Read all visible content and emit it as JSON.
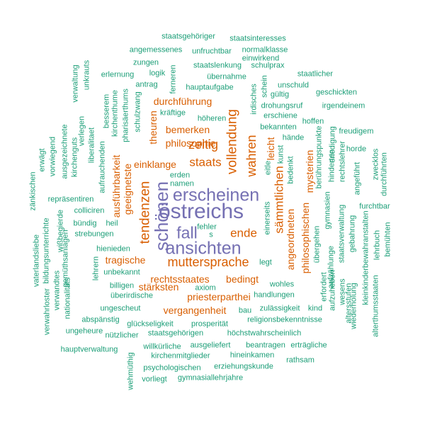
{
  "colors": {
    "purple": "#7570b3",
    "orange": "#d95f02",
    "teal": "#1b9e77"
  },
  "words": [
    {
      "text": "östreichs",
      "color": "purple"
    },
    {
      "text": "erscheinen",
      "color": "purple"
    },
    {
      "text": "ansichten",
      "color": "purple"
    },
    {
      "text": "schönen",
      "color": "purple"
    },
    {
      "text": "fall",
      "color": "purple"
    },
    {
      "text": "muttersprache",
      "color": "orange"
    },
    {
      "text": "tendenzen",
      "color": "orange"
    },
    {
      "text": "vollendung",
      "color": "orange"
    },
    {
      "text": "wahren",
      "color": "orange"
    },
    {
      "text": "zeitig",
      "color": "orange"
    },
    {
      "text": "staats",
      "color": "orange"
    },
    {
      "text": "ende",
      "color": "orange"
    },
    {
      "text": "sämmtlichen",
      "color": "orange"
    },
    {
      "text": "priesterparthei",
      "color": "orange"
    },
    {
      "text": "rechtsstaates",
      "color": "orange"
    },
    {
      "text": "bedingt",
      "color": "orange"
    },
    {
      "text": "vergangenheit",
      "color": "orange"
    },
    {
      "text": "stärksten",
      "color": "orange"
    },
    {
      "text": "tragische",
      "color": "orange"
    },
    {
      "text": "philosophie",
      "color": "orange"
    },
    {
      "text": "bemerken",
      "color": "orange"
    },
    {
      "text": "durchführung",
      "color": "orange"
    },
    {
      "text": "einklange",
      "color": "orange"
    },
    {
      "text": "theuren",
      "color": "orange"
    },
    {
      "text": "ausführbarkeit",
      "color": "orange"
    },
    {
      "text": "geeignetste",
      "color": "orange"
    },
    {
      "text": "leicht",
      "color": "orange"
    },
    {
      "text": "angeordneten",
      "color": "orange"
    },
    {
      "text": "philosophischen",
      "color": "orange"
    },
    {
      "text": "mysterien",
      "color": "orange"
    },
    {
      "text": "staatsgehöriger",
      "color": "teal"
    },
    {
      "text": "staatsinteresses",
      "color": "teal"
    },
    {
      "text": "einwirkend",
      "color": "teal"
    },
    {
      "text": "unfruchtbar",
      "color": "teal"
    },
    {
      "text": "normalklasse",
      "color": "teal"
    },
    {
      "text": "angemessenes",
      "color": "teal"
    },
    {
      "text": "zungen",
      "color": "teal"
    },
    {
      "text": "staatslenkung",
      "color": "teal"
    },
    {
      "text": "schulprax",
      "color": "teal"
    },
    {
      "text": "erlernung",
      "color": "teal"
    },
    {
      "text": "logik",
      "color": "teal"
    },
    {
      "text": "übernahme",
      "color": "teal"
    },
    {
      "text": "staatlicher",
      "color": "teal"
    },
    {
      "text": "antrag",
      "color": "teal"
    },
    {
      "text": "hauptaufgabe",
      "color": "teal"
    },
    {
      "text": "unschuld",
      "color": "teal"
    },
    {
      "text": "geschickten",
      "color": "teal"
    },
    {
      "text": "gültig",
      "color": "teal"
    },
    {
      "text": "drohungsruf",
      "color": "teal"
    },
    {
      "text": "irgendeinem",
      "color": "teal"
    },
    {
      "text": "erschiene",
      "color": "teal"
    },
    {
      "text": "kräftige",
      "color": "teal"
    },
    {
      "text": "höheren",
      "color": "teal"
    },
    {
      "text": "hoffen",
      "color": "teal"
    },
    {
      "text": "bekannten",
      "color": "teal"
    },
    {
      "text": "freudigem",
      "color": "teal"
    },
    {
      "text": "hände",
      "color": "teal"
    },
    {
      "text": "horde",
      "color": "teal"
    },
    {
      "text": "erden",
      "color": "teal"
    },
    {
      "text": "namen",
      "color": "teal"
    },
    {
      "text": "repräsentiren",
      "color": "teal"
    },
    {
      "text": "colliciren",
      "color": "teal"
    },
    {
      "text": "furchtbar",
      "color": "teal"
    },
    {
      "text": "bündig",
      "color": "teal"
    },
    {
      "text": "heil",
      "color": "teal"
    },
    {
      "text": "strebungen",
      "color": "teal"
    },
    {
      "text": "fehler",
      "color": "teal"
    },
    {
      "text": "s",
      "color": "teal"
    },
    {
      "text": "hienieden",
      "color": "teal"
    },
    {
      "text": "legt",
      "color": "teal"
    },
    {
      "text": "unbekannt",
      "color": "teal"
    },
    {
      "text": "billigen",
      "color": "teal"
    },
    {
      "text": "axiom",
      "color": "teal"
    },
    {
      "text": "wohles",
      "color": "teal"
    },
    {
      "text": "überirdische",
      "color": "teal"
    },
    {
      "text": "handlungen",
      "color": "teal"
    },
    {
      "text": "ungescheut",
      "color": "teal"
    },
    {
      "text": "bau",
      "color": "teal"
    },
    {
      "text": "zulässigkeit",
      "color": "teal"
    },
    {
      "text": "kind",
      "color": "teal"
    },
    {
      "text": "abspänstig",
      "color": "teal"
    },
    {
      "text": "religionsbekenntnisse",
      "color": "teal"
    },
    {
      "text": "ungeheure",
      "color": "teal"
    },
    {
      "text": "glückseligkeit",
      "color": "teal"
    },
    {
      "text": "prosperität",
      "color": "teal"
    },
    {
      "text": "nützlicher",
      "color": "teal"
    },
    {
      "text": "staatsgehörigen",
      "color": "teal"
    },
    {
      "text": "höchstwahrscheinlich",
      "color": "teal"
    },
    {
      "text": "hauptverwaltung",
      "color": "teal"
    },
    {
      "text": "willkürliche",
      "color": "teal"
    },
    {
      "text": "ausgeliefert",
      "color": "teal"
    },
    {
      "text": "beantragen",
      "color": "teal"
    },
    {
      "text": "erträgliche",
      "color": "teal"
    },
    {
      "text": "hineinkamen",
      "color": "teal"
    },
    {
      "text": "kirchenmitglieder",
      "color": "teal"
    },
    {
      "text": "rathsam",
      "color": "teal"
    },
    {
      "text": "psychologischen",
      "color": "teal"
    },
    {
      "text": "erziehungskunde",
      "color": "teal"
    },
    {
      "text": "vorliegt",
      "color": "teal"
    },
    {
      "text": "gymnasiallehrjahre",
      "color": "teal"
    },
    {
      "text": "unkrauts",
      "color": "teal"
    },
    {
      "text": "verwaltung",
      "color": "teal"
    },
    {
      "text": "verlegen",
      "color": "teal"
    },
    {
      "text": "besserem",
      "color": "teal"
    },
    {
      "text": "kirchenthume",
      "color": "teal"
    },
    {
      "text": "pharisäerthums",
      "color": "teal"
    },
    {
      "text": "schulzwang",
      "color": "teal"
    },
    {
      "text": "ferneren",
      "color": "teal"
    },
    {
      "text": "liberalitaet",
      "color": "teal"
    },
    {
      "text": "kirchenguts",
      "color": "teal"
    },
    {
      "text": "ausgezeichnete",
      "color": "teal"
    },
    {
      "text": "vorwiegend",
      "color": "teal"
    },
    {
      "text": "erwägt",
      "color": "teal"
    },
    {
      "text": "zänkischen",
      "color": "teal"
    },
    {
      "text": "aufrauchenden",
      "color": "teal"
    },
    {
      "text": "irdisches",
      "color": "teal"
    },
    {
      "text": "schein",
      "color": "teal"
    },
    {
      "text": "eitle",
      "color": "teal"
    },
    {
      "text": "kunst",
      "color": "teal"
    },
    {
      "text": "bedenkt",
      "color": "teal"
    },
    {
      "text": "berührungspunkte",
      "color": "teal"
    },
    {
      "text": "erledigung",
      "color": "teal"
    },
    {
      "text": "hinderten",
      "color": "teal"
    },
    {
      "text": "rechtslehrer",
      "color": "teal"
    },
    {
      "text": "angeführt",
      "color": "teal"
    },
    {
      "text": "zwecklos",
      "color": "teal"
    },
    {
      "text": "durchführten",
      "color": "teal"
    },
    {
      "text": "vaterlandsliebe",
      "color": "teal"
    },
    {
      "text": "bildungsunterrichte",
      "color": "teal"
    },
    {
      "text": "wißbegierde",
      "color": "teal"
    },
    {
      "text": "gemüthsanlagen",
      "color": "teal"
    },
    {
      "text": "verwahrloster",
      "color": "teal"
    },
    {
      "text": "nationalitäts",
      "color": "teal"
    },
    {
      "text": "verwandtes",
      "color": "teal"
    },
    {
      "text": "lehrern",
      "color": "teal"
    },
    {
      "text": "wehmüthig",
      "color": "teal"
    },
    {
      "text": "einerseits",
      "color": "teal"
    },
    {
      "text": "gymnasien",
      "color": "teal"
    },
    {
      "text": "übergehen",
      "color": "teal"
    },
    {
      "text": "aufzählunge",
      "color": "teal"
    },
    {
      "text": "staatsverwaltung",
      "color": "teal"
    },
    {
      "text": "gebahrung",
      "color": "teal"
    },
    {
      "text": "kleinkinderbewahranstalten",
      "color": "teal"
    },
    {
      "text": "lehrbuch",
      "color": "teal"
    },
    {
      "text": "bemühten",
      "color": "teal"
    },
    {
      "text": "erfordert",
      "color": "teal"
    },
    {
      "text": "aufzuheben",
      "color": "teal"
    },
    {
      "text": "wesens",
      "color": "teal"
    },
    {
      "text": "altersstufen",
      "color": "teal"
    },
    {
      "text": "wiederholung",
      "color": "teal"
    },
    {
      "text": "alterthumsstaaten",
      "color": "teal"
    }
  ]
}
